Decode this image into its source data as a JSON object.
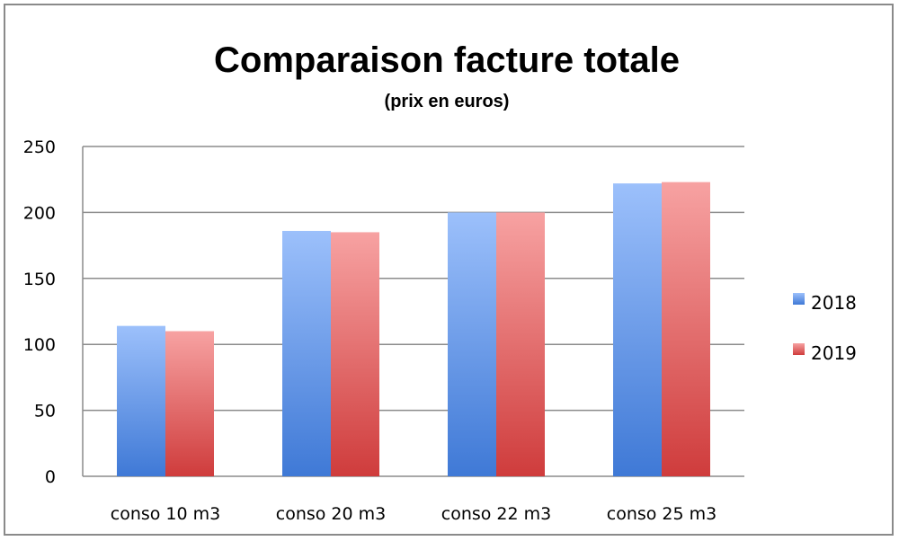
{
  "chart_data": {
    "type": "bar",
    "title": "Comparaison facture totale",
    "subtitle": "(prix en euros)",
    "categories": [
      "conso 10 m3",
      "conso 20 m3",
      "conso 22 m3",
      "conso 25 m3"
    ],
    "series": [
      {
        "name": "2018",
        "values": [
          114,
          186,
          200,
          222
        ],
        "color": "#6f9fe8"
      },
      {
        "name": "2019",
        "values": [
          110,
          185,
          200,
          223
        ],
        "color": "#e06a6a"
      }
    ],
    "ylim": [
      0,
      250
    ],
    "yticks": [
      0,
      50,
      100,
      150,
      200,
      250
    ],
    "grid": true,
    "legend": "right"
  }
}
